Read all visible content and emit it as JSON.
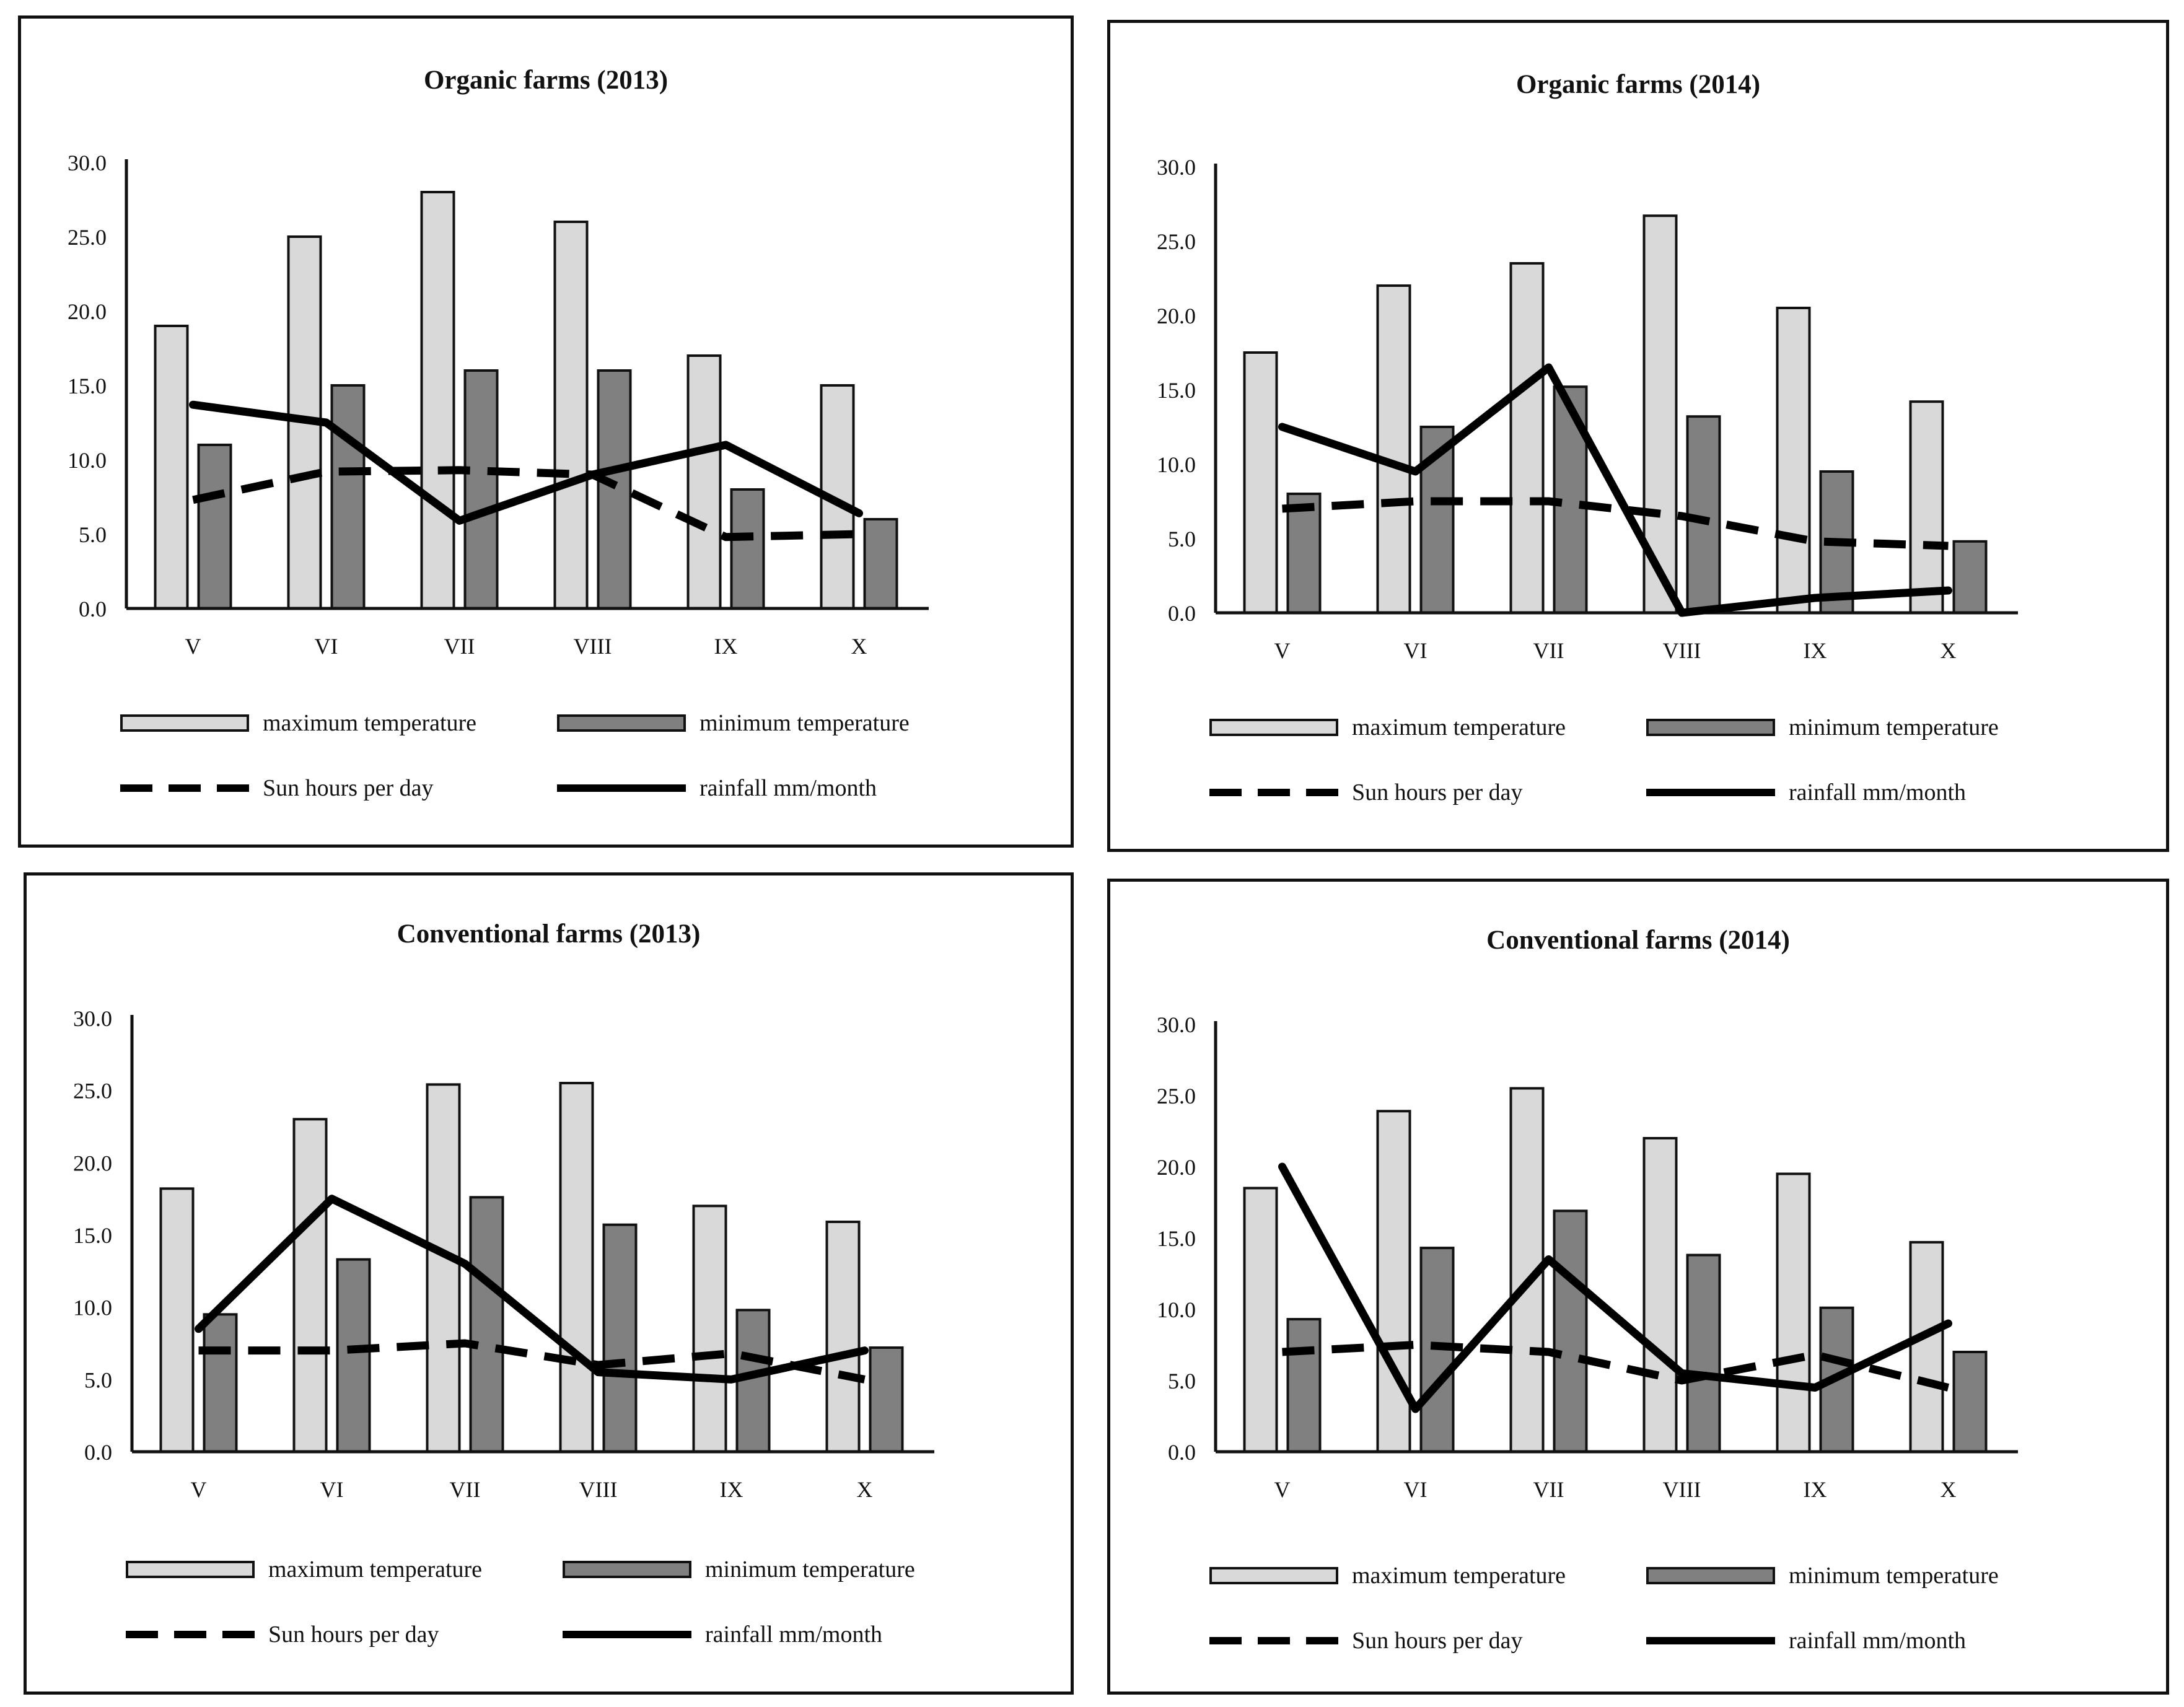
{
  "legend": {
    "max_label": "maximum temperature",
    "min_label": "minimum temperature",
    "sun_label": "Sun hours per day",
    "rain_label": "rainfall mm/month"
  },
  "colors": {
    "max_temp": "#d9d9d9",
    "min_temp": "#808080",
    "lines": "#000000",
    "border": "#111111"
  },
  "chart_data": [
    {
      "type": "bar",
      "title": "Organic farms (2013)",
      "categories": [
        "V",
        "VI",
        "VII",
        "VIII",
        "IX",
        "X"
      ],
      "y_ticks": [
        "0.0",
        "5.0",
        "10.0",
        "15.0",
        "20.0",
        "25.0",
        "30.0"
      ],
      "ylim": [
        0,
        30
      ],
      "series": [
        {
          "name": "maximum temperature",
          "kind": "bar",
          "values": [
            19,
            25,
            28,
            26,
            17,
            15
          ]
        },
        {
          "name": "minimum temperature",
          "kind": "bar",
          "values": [
            11,
            15,
            16,
            16,
            8,
            6
          ]
        },
        {
          "name": "Sun hours per day",
          "kind": "dashed-line",
          "values": [
            7.3,
            9.2,
            9.3,
            9.0,
            4.8,
            5.0
          ]
        },
        {
          "name": "rainfall mm/month",
          "kind": "line",
          "values": [
            13.7,
            12.5,
            5.9,
            9.0,
            11.0,
            6.4
          ]
        }
      ]
    },
    {
      "type": "bar",
      "title": "Organic farms (2014)",
      "categories": [
        "V",
        "VI",
        "VII",
        "VIII",
        "IX",
        "X"
      ],
      "y_ticks": [
        "0.0",
        "5.0",
        "10.0",
        "15.0",
        "20.0",
        "25.0",
        "30.0"
      ],
      "ylim": [
        0,
        30
      ],
      "series": [
        {
          "name": "maximum temperature",
          "kind": "bar",
          "values": [
            17.5,
            22.0,
            23.5,
            26.7,
            20.5,
            14.2
          ]
        },
        {
          "name": "minimum temperature",
          "kind": "bar",
          "values": [
            8.0,
            12.5,
            15.2,
            13.2,
            9.5,
            4.8
          ]
        },
        {
          "name": "Sun hours per day",
          "kind": "dashed-line",
          "values": [
            7.0,
            7.5,
            7.5,
            6.5,
            4.8,
            4.5
          ]
        },
        {
          "name": "rainfall mm/month",
          "kind": "line",
          "values": [
            12.5,
            9.5,
            16.5,
            0.0,
            1.0,
            1.5
          ]
        }
      ]
    },
    {
      "type": "bar",
      "title": "Conventional farms (2013)",
      "categories": [
        "V",
        "VI",
        "VII",
        "VIII",
        "IX",
        "X"
      ],
      "y_ticks": [
        "0.0",
        "5.0",
        "10.0",
        "15.0",
        "20.0",
        "25.0",
        "30.0"
      ],
      "ylim": [
        0,
        30
      ],
      "series": [
        {
          "name": "maximum temperature",
          "kind": "bar",
          "values": [
            18.2,
            23.0,
            25.4,
            25.5,
            17.0,
            15.9
          ]
        },
        {
          "name": "minimum temperature",
          "kind": "bar",
          "values": [
            9.5,
            13.3,
            17.6,
            15.7,
            9.8,
            7.2
          ]
        },
        {
          "name": "Sun hours per day",
          "kind": "dashed-line",
          "values": [
            7.0,
            7.0,
            7.5,
            6.0,
            6.8,
            5.0
          ]
        },
        {
          "name": "rainfall mm/month",
          "kind": "line",
          "values": [
            8.5,
            17.5,
            13.0,
            5.5,
            5.0,
            7.0
          ]
        }
      ]
    },
    {
      "type": "bar",
      "title": "Conventional farms (2014)",
      "categories": [
        "V",
        "VI",
        "VII",
        "VIII",
        "IX",
        "X"
      ],
      "y_ticks": [
        "0.0",
        "5.0",
        "10.0",
        "15.0",
        "20.0",
        "25.0",
        "30.0"
      ],
      "ylim": [
        0,
        30
      ],
      "series": [
        {
          "name": "maximum temperature",
          "kind": "bar",
          "values": [
            18.5,
            23.9,
            25.5,
            22.0,
            19.5,
            14.7
          ]
        },
        {
          "name": "minimum temperature",
          "kind": "bar",
          "values": [
            9.3,
            14.3,
            16.9,
            13.8,
            10.1,
            7.0
          ]
        },
        {
          "name": "Sun hours per day",
          "kind": "dashed-line",
          "values": [
            7.0,
            7.5,
            7.0,
            5.0,
            6.8,
            4.5
          ]
        },
        {
          "name": "rainfall mm/month",
          "kind": "line",
          "values": [
            20.0,
            3.0,
            13.5,
            5.5,
            4.5,
            9.0
          ]
        }
      ]
    }
  ]
}
